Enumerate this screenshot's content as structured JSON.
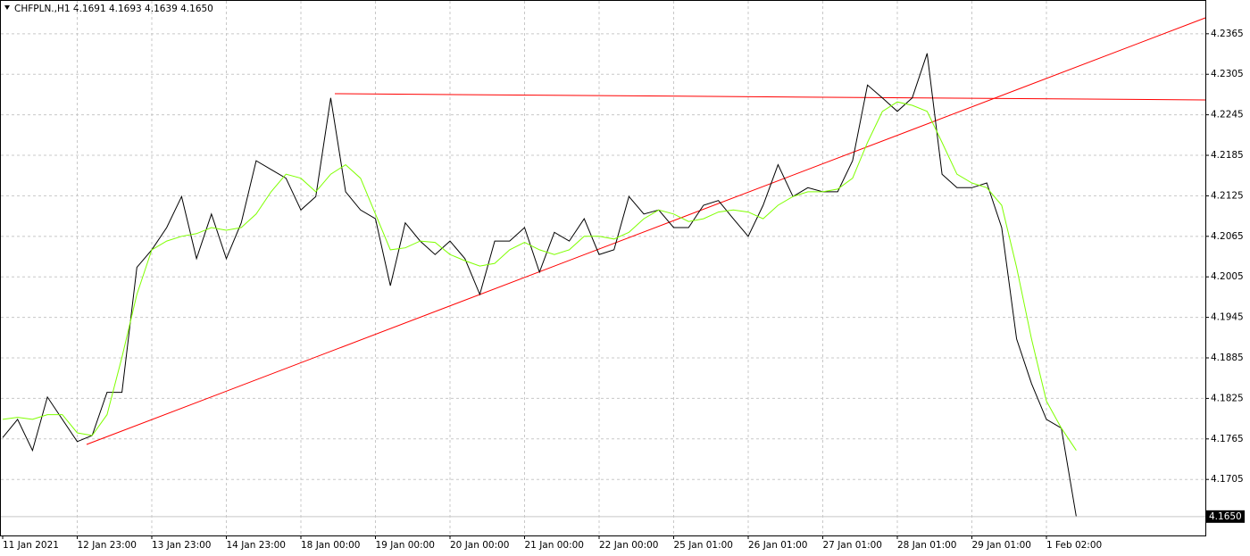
{
  "chart_data": {
    "type": "line",
    "title": "CHFPLN.,H1  4.1691 4.1693 4.1639 4.1650",
    "categories": [
      "11 Jan 2021",
      null,
      null,
      null,
      null,
      "12 Jan 23:00",
      null,
      null,
      null,
      null,
      "13 Jan 23:00",
      null,
      null,
      null,
      null,
      "14 Jan 23:00",
      null,
      null,
      null,
      null,
      "18 Jan 00:00",
      null,
      null,
      null,
      null,
      "19 Jan 00:00",
      null,
      null,
      null,
      null,
      "20 Jan 00:00",
      null,
      null,
      null,
      null,
      "21 Jan 00:00",
      null,
      null,
      null,
      null,
      "22 Jan 00:00",
      null,
      null,
      null,
      null,
      "25 Jan 01:00",
      null,
      null,
      null,
      null,
      "26 Jan 01:00",
      null,
      null,
      null,
      null,
      "27 Jan 01:00",
      null,
      null,
      null,
      null,
      "28 Jan 01:00",
      null,
      null,
      null,
      null,
      "29 Jan 01:00",
      null,
      null,
      null,
      null,
      "1 Feb 02:00",
      null,
      null
    ],
    "series": [
      {
        "color": "#000000",
        "values": [
          4.1767,
          4.1794,
          4.1748,
          4.1827,
          4.1794,
          4.1761,
          4.177,
          4.1834,
          4.1834,
          4.2019,
          4.2045,
          4.2078,
          4.2124,
          4.2032,
          4.2098,
          4.2032,
          4.2085,
          4.2177,
          4.2164,
          4.2151,
          4.2104,
          4.2124,
          4.227,
          4.2131,
          4.2104,
          4.2091,
          4.1992,
          4.2085,
          4.2058,
          4.2038,
          4.2058,
          4.2032,
          4.1979,
          4.2058,
          4.2058,
          4.2078,
          4.2012,
          4.2071,
          4.2058,
          4.2091,
          4.2038,
          4.2045,
          4.2124,
          4.2098,
          4.2104,
          4.2078,
          4.2078,
          4.2111,
          4.2118,
          4.2091,
          4.2065,
          4.2111,
          4.2171,
          4.2124,
          4.2137,
          4.2131,
          4.2131,
          4.2177,
          4.2289,
          4.227,
          4.225,
          4.227,
          4.2336,
          4.2157,
          4.2137,
          4.2137,
          4.2144,
          4.2078,
          4.1913,
          4.1847,
          4.1794,
          4.1781,
          4.165
        ]
      },
      {
        "color": "#7fff00",
        "values": [
          4.1794,
          4.1797,
          4.1794,
          4.1801,
          4.1801,
          4.1774,
          4.177,
          4.1801,
          4.1886,
          4.1979,
          4.2045,
          4.2058,
          4.2065,
          4.2069,
          4.2078,
          4.2074,
          4.2078,
          4.2098,
          4.2131,
          4.2157,
          4.2151,
          4.2131,
          4.2157,
          4.2171,
          4.2151,
          4.2098,
          4.2045,
          4.2048,
          4.2058,
          4.2056,
          4.2038,
          4.2029,
          4.2021,
          4.2025,
          4.2045,
          4.2056,
          4.2045,
          4.2038,
          4.2045,
          4.2065,
          4.2065,
          4.2061,
          4.2071,
          4.2091,
          4.2104,
          4.2098,
          4.2087,
          4.2091,
          4.2101,
          4.2104,
          4.2101,
          4.2091,
          4.2111,
          4.2124,
          4.2131,
          4.2131,
          4.2135,
          4.2151,
          4.2204,
          4.225,
          4.2264,
          4.2259,
          4.225,
          4.2204,
          4.2157,
          4.2144,
          4.2137,
          4.2111,
          4.2019,
          4.1913,
          4.1821,
          4.1781,
          4.1748
        ]
      }
    ],
    "ylim": [
      4.1622,
      4.2415
    ],
    "yticks": [
      4.1705,
      4.1765,
      4.1825,
      4.1885,
      4.1945,
      4.2005,
      4.2065,
      4.2125,
      4.2185,
      4.2245,
      4.2305,
      4.2365
    ],
    "last_price": {
      "value": 4.165,
      "label": "4.1650"
    },
    "grid": true
  }
}
